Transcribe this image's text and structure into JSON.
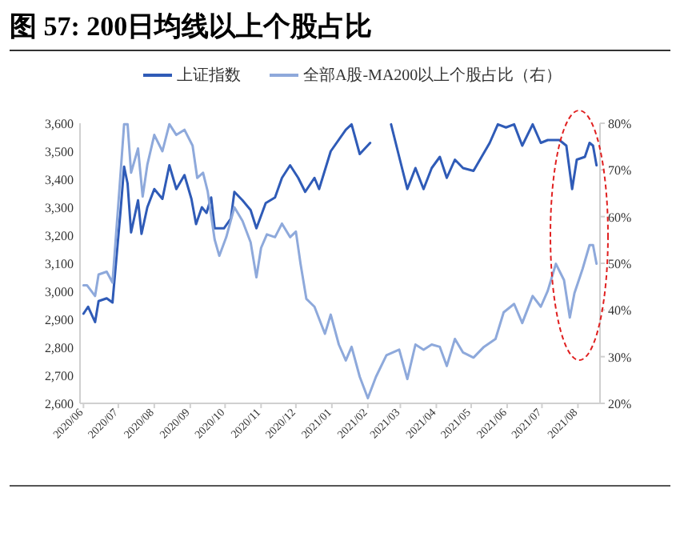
{
  "chart_data": {
    "type": "line",
    "title": "图 57:  200日均线以上个股占比",
    "x": [
      "2020-06-01",
      "2020-06-05",
      "2020-06-11",
      "2020-06-14",
      "2020-06-21",
      "2020-06-26",
      "2020-07-03",
      "2020-07-06",
      "2020-07-09",
      "2020-07-12",
      "2020-07-18",
      "2020-07-21",
      "2020-07-26",
      "2020-08-01",
      "2020-08-08",
      "2020-08-14",
      "2020-08-20",
      "2020-08-27",
      "2020-09-02",
      "2020-09-06",
      "2020-09-11",
      "2020-09-15",
      "2020-09-19",
      "2020-09-22",
      "2020-09-30",
      "2020-10-06",
      "2020-10-09",
      "2020-10-16",
      "2020-10-23",
      "2020-10-28",
      "2020-11-05",
      "2020-11-13",
      "2020-11-19",
      "2020-11-26",
      "2020-12-03",
      "2020-12-09",
      "2020-12-17",
      "2020-12-21",
      "2020-12-31",
      "2021-01-13",
      "2021-01-18",
      "2021-01-25",
      "2021-02-03",
      "2021-02-08",
      "2021-02-21",
      "2021-02-28",
      "2021-03-07",
      "2021-03-14",
      "2021-03-21",
      "2021-03-28",
      "2021-04-04",
      "2021-04-10",
      "2021-04-17",
      "2021-04-24",
      "2021-05-03",
      "2021-05-10",
      "2021-05-17",
      "2021-05-24",
      "2021-05-31",
      "2021-06-07",
      "2021-06-14",
      "2021-06-23",
      "2021-06-30",
      "2021-07-06",
      "2021-07-16",
      "2021-07-22",
      "2021-07-27",
      "2021-07-31",
      "2021-08-07",
      "2021-08-11",
      "2021-08-14",
      "2021-08-17"
    ],
    "series": [
      {
        "name": "上证指数",
        "color": "#2f5bb7",
        "values": [
          2920,
          2945,
          2890,
          2965,
          2975,
          2960,
          3290,
          3445,
          3385,
          3210,
          3325,
          3205,
          3300,
          3365,
          3330,
          3450,
          3365,
          3415,
          3330,
          3240,
          3300,
          3280,
          3335,
          3225,
          3225,
          3260,
          3355,
          3325,
          3290,
          3225,
          3315,
          3335,
          3405,
          3450,
          3405,
          3355,
          3405,
          3365,
          3500,
          3577,
          3596,
          3490,
          3530,
          null,
          3596,
          3480,
          3365,
          3440,
          3365,
          3440,
          3480,
          3405,
          3470,
          3440,
          3430,
          3480,
          3530,
          3596,
          3585,
          3596,
          3520,
          3596,
          3530,
          3540,
          3540,
          3520,
          3365,
          3470,
          3480,
          3530,
          3520,
          3450
        ]
      },
      {
        "name": "全部A股-MA200以上个股占比（右）",
        "color": "#8ea9db",
        "axis": "y2",
        "x": [
          "2020-06-01",
          "2020-06-04",
          "2020-06-11",
          "2020-06-14",
          "2020-06-21",
          "2020-06-26",
          "2020-07-02",
          "2020-07-06",
          "2020-07-09",
          "2020-07-12",
          "2020-07-18",
          "2020-07-22",
          "2020-07-26",
          "2020-08-01",
          "2020-08-08",
          "2020-08-14",
          "2020-08-20",
          "2020-08-27",
          "2020-09-03",
          "2020-09-07",
          "2020-09-12",
          "2020-09-16",
          "2020-09-22",
          "2020-09-26",
          "2020-10-02",
          "2020-10-09",
          "2020-10-16",
          "2020-10-23",
          "2020-10-28",
          "2020-11-01",
          "2020-11-06",
          "2020-11-13",
          "2020-11-19",
          "2020-11-26",
          "2020-12-01",
          "2020-12-05",
          "2020-12-10",
          "2020-12-17",
          "2020-12-26",
          "2020-12-31",
          "2021-01-07",
          "2021-01-13",
          "2021-01-18",
          "2021-01-25",
          "2021-02-01",
          "2021-02-08",
          "2021-02-17",
          "2021-02-28",
          "2021-03-07",
          "2021-03-14",
          "2021-03-21",
          "2021-03-28",
          "2021-04-04",
          "2021-04-10",
          "2021-04-17",
          "2021-04-24",
          "2021-05-03",
          "2021-05-12",
          "2021-05-22",
          "2021-05-29",
          "2021-06-07",
          "2021-06-14",
          "2021-06-23",
          "2021-06-30",
          "2021-07-06",
          "2021-07-13",
          "2021-07-20",
          "2021-07-25",
          "2021-07-29",
          "2021-08-05",
          "2021-08-11",
          "2021-08-14",
          "2021-08-17"
        ],
        "values": [
          45.3,
          45.3,
          43.0,
          47.6,
          48.2,
          45.9,
          66.0,
          79.8,
          79.8,
          69.4,
          74.6,
          64.3,
          71.1,
          77.5,
          74.0,
          79.8,
          77.5,
          78.6,
          75.2,
          68.3,
          69.4,
          65.4,
          55.1,
          51.6,
          55.6,
          62.0,
          59.1,
          54.5,
          47.0,
          53.3,
          56.2,
          55.6,
          58.5,
          55.6,
          56.8,
          49.9,
          42.4,
          40.7,
          34.9,
          39.0,
          32.6,
          29.2,
          32.1,
          25.7,
          21.1,
          25.7,
          30.3,
          31.5,
          25.2,
          32.6,
          31.5,
          32.6,
          32.1,
          28.0,
          33.8,
          30.9,
          29.8,
          32.1,
          33.8,
          39.5,
          41.3,
          37.2,
          43.0,
          40.7,
          44.1,
          49.9,
          46.4,
          38.4,
          43.6,
          48.8,
          53.9,
          53.9,
          49.9
        ]
      }
    ],
    "xlim": [
      "2020-05-29",
      "2021-08-20"
    ],
    "xticks": [
      {
        "value": "2020-06-01",
        "label": "2020/06"
      },
      {
        "value": "2020-07-01",
        "label": "2020/07"
      },
      {
        "value": "2020-08-01",
        "label": "2020/08"
      },
      {
        "value": "2020-09-01",
        "label": "2020/09"
      },
      {
        "value": "2020-10-01",
        "label": "2020/10"
      },
      {
        "value": "2020-11-01",
        "label": "2020/11"
      },
      {
        "value": "2020-12-01",
        "label": "2020/12"
      },
      {
        "value": "2021-01-01",
        "label": "2021/01"
      },
      {
        "value": "2021-02-01",
        "label": "2021/02"
      },
      {
        "value": "2021-03-01",
        "label": "2021/03"
      },
      {
        "value": "2021-04-01",
        "label": "2021/04"
      },
      {
        "value": "2021-05-01",
        "label": "2021/05"
      },
      {
        "value": "2021-06-01",
        "label": "2021/06"
      },
      {
        "value": "2021-07-01",
        "label": "2021/07"
      },
      {
        "value": "2021-08-01",
        "label": "2021/08"
      }
    ],
    "ylim": [
      2600,
      3600
    ],
    "yticks": [
      {
        "value": 2600,
        "label": "2,600"
      },
      {
        "value": 2700,
        "label": "2,700"
      },
      {
        "value": 2800,
        "label": "2,800"
      },
      {
        "value": 2900,
        "label": "2,900"
      },
      {
        "value": 3000,
        "label": "3,000"
      },
      {
        "value": 3100,
        "label": "3,100"
      },
      {
        "value": 3200,
        "label": "3,200"
      },
      {
        "value": 3300,
        "label": "3,300"
      },
      {
        "value": 3400,
        "label": "3,400"
      },
      {
        "value": 3500,
        "label": "3,500"
      },
      {
        "value": 3600,
        "label": "3,600"
      }
    ],
    "y2lim": [
      20,
      80
    ],
    "y2ticks": [
      {
        "value": 20,
        "label": "20%"
      },
      {
        "value": 30,
        "label": "30%"
      },
      {
        "value": 40,
        "label": "40%"
      },
      {
        "value": 50,
        "label": "50%"
      },
      {
        "value": 60,
        "label": "60%"
      },
      {
        "value": 70,
        "label": "70%"
      },
      {
        "value": 80,
        "label": "80%"
      }
    ],
    "legend": "top",
    "grid": false
  }
}
